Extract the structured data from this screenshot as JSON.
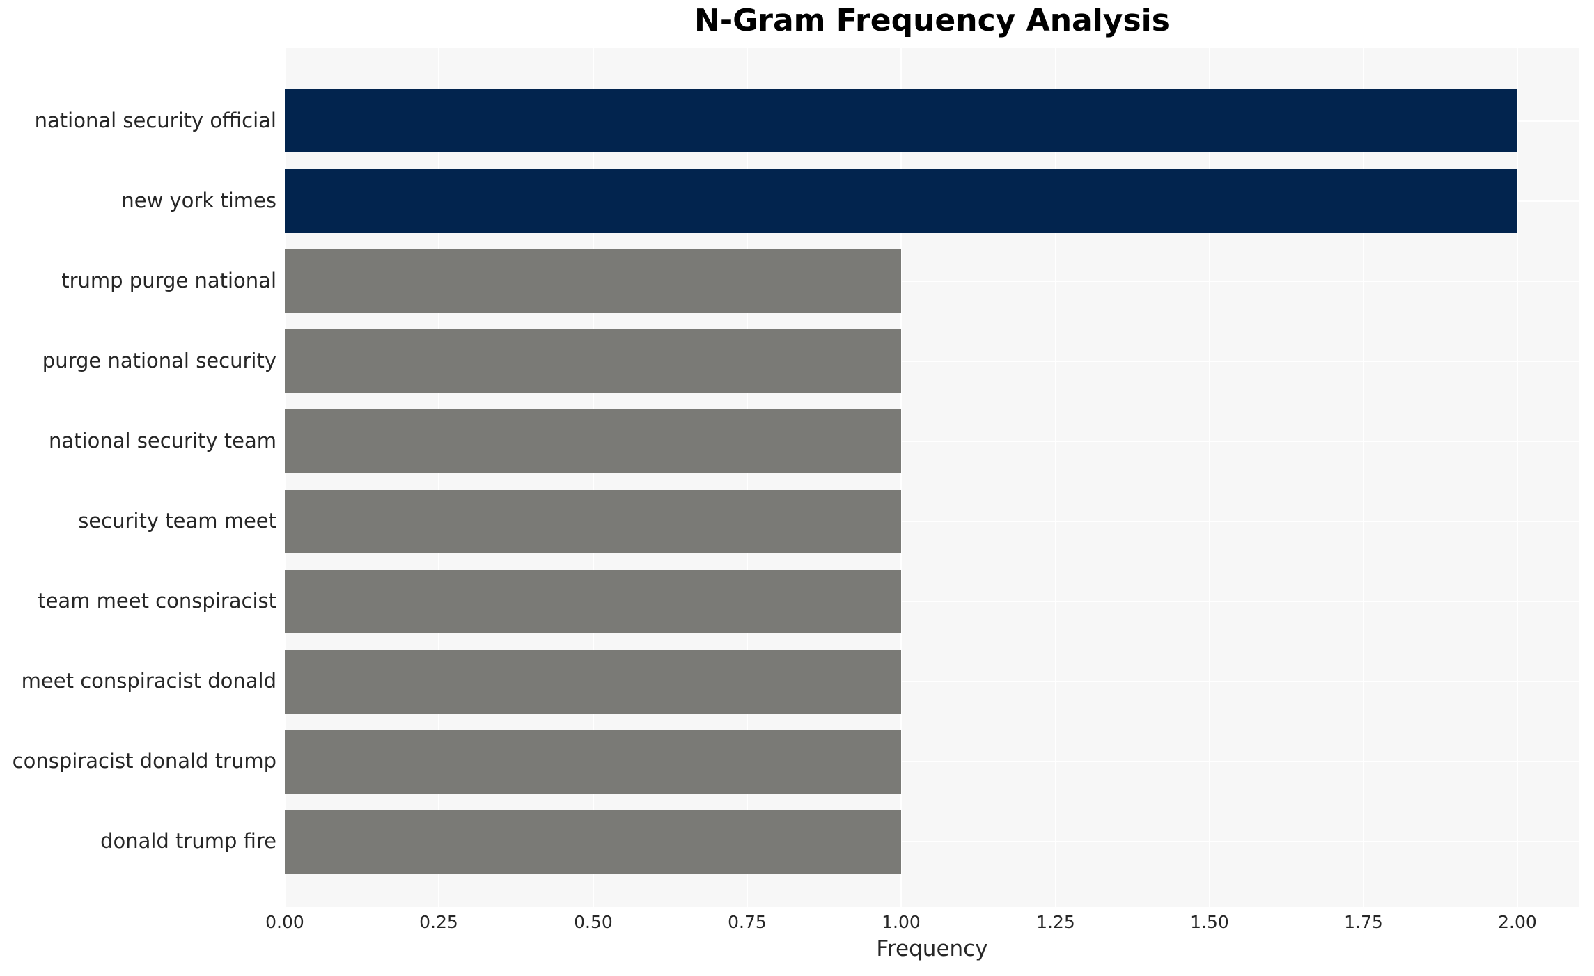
{
  "chart_data": {
    "type": "bar",
    "orientation": "horizontal",
    "title": "N-Gram Frequency Analysis",
    "xlabel": "Frequency",
    "ylabel": "",
    "categories": [
      "national security official",
      "new york times",
      "trump purge national",
      "purge national security",
      "national security team",
      "security team meet",
      "team meet conspiracist",
      "meet conspiracist donald",
      "conspiracist donald trump",
      "donald trump fire"
    ],
    "values": [
      2.0,
      2.0,
      1.0,
      1.0,
      1.0,
      1.0,
      1.0,
      1.0,
      1.0,
      1.0
    ],
    "bar_colors": [
      "#02244E",
      "#02244E",
      "#7A7A76",
      "#7A7A76",
      "#7A7A76",
      "#7A7A76",
      "#7A7A76",
      "#7A7A76",
      "#7A7A76",
      "#7A7A76"
    ],
    "xlim": [
      0,
      2.1
    ],
    "xticks": [
      0.0,
      0.25,
      0.5,
      0.75,
      1.0,
      1.25,
      1.5,
      1.75,
      2.0
    ],
    "xtick_labels": [
      "0.00",
      "0.25",
      "0.50",
      "0.75",
      "1.00",
      "1.25",
      "1.50",
      "1.75",
      "2.00"
    ],
    "grid": true,
    "legend": false
  },
  "styles": {
    "plot_background": "#F7F7F7",
    "grid_color": "#FFFFFF",
    "text_color": "#262626",
    "highlight_bar_color": "#02244E",
    "default_bar_color": "#7A7A76"
  }
}
